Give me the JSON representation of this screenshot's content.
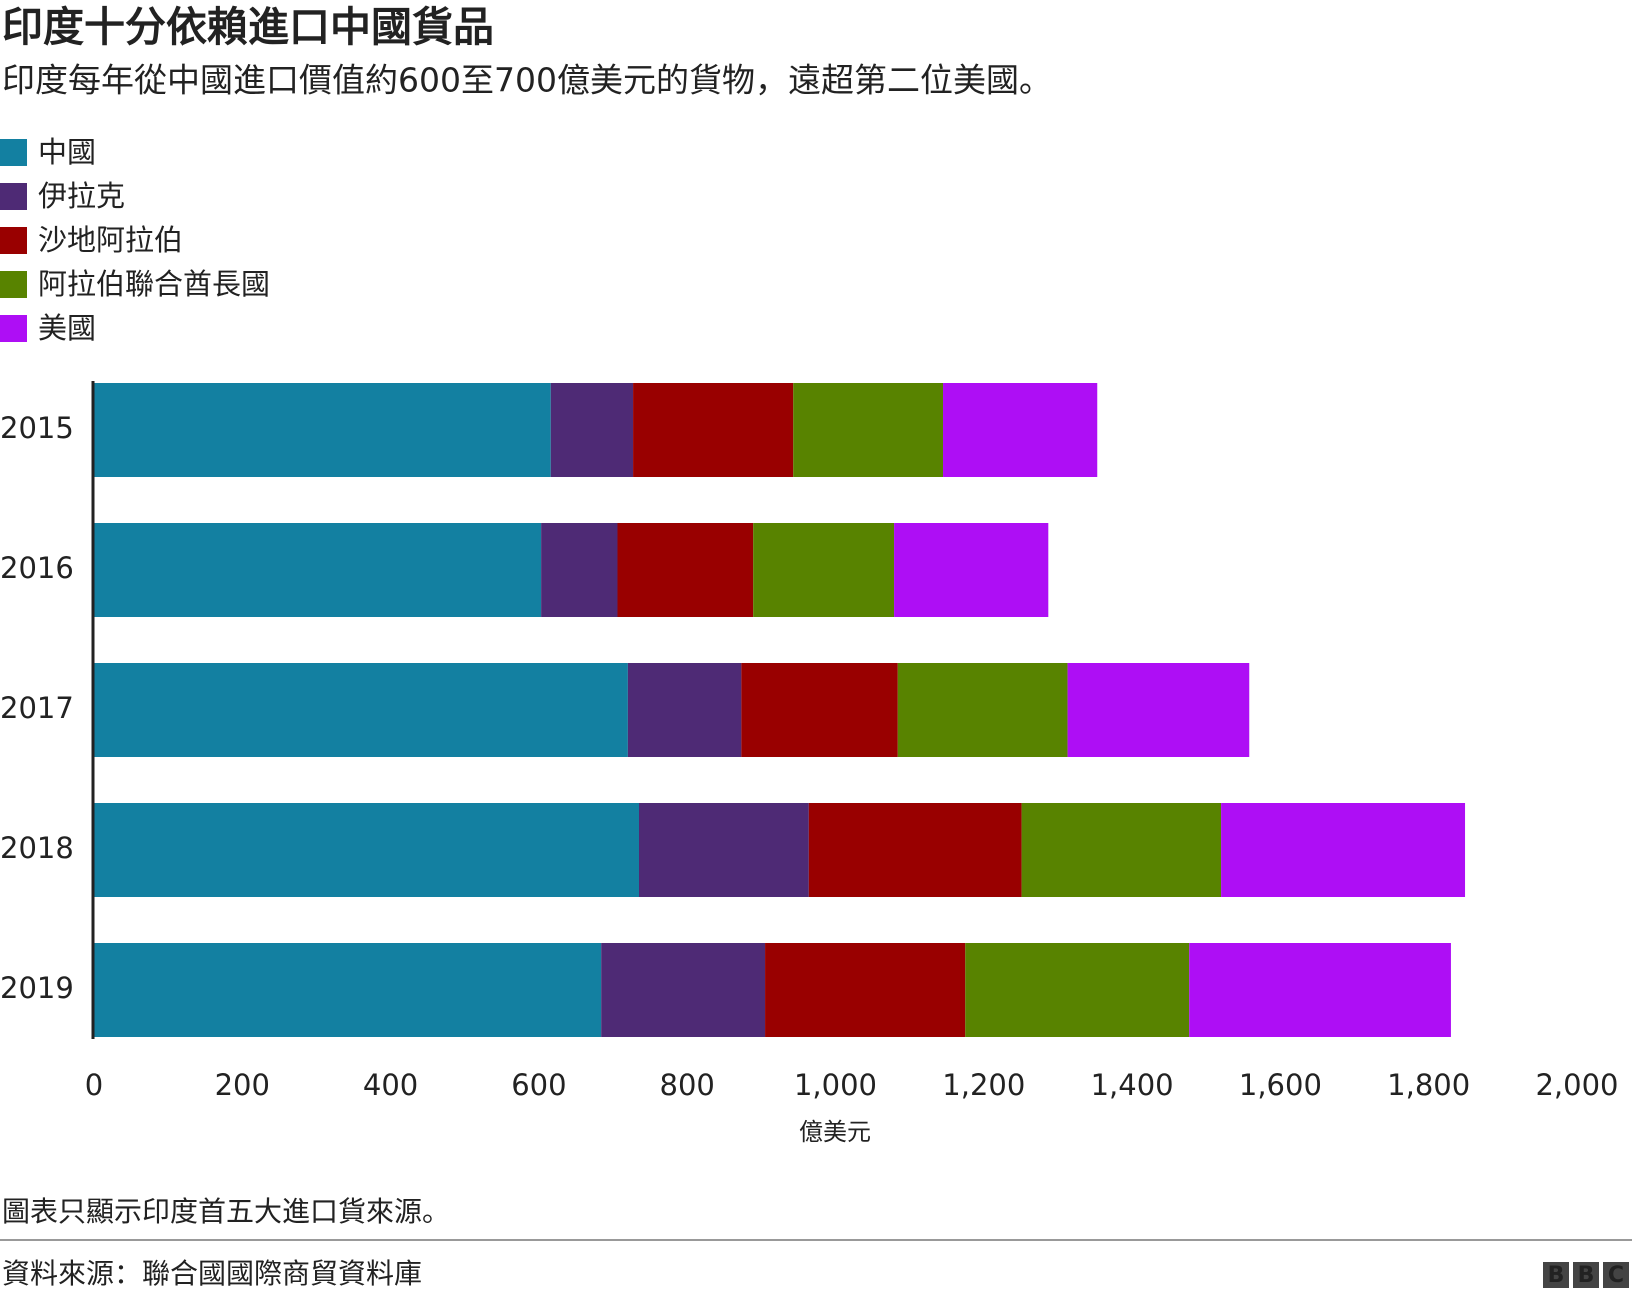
{
  "chart_data": {
    "type": "stacked-barh",
    "title": "印度十分依賴進口中國貨品",
    "subtitle": "印度每年從中國進口價值約600至700億美元的貨物，遠超第二位美國。",
    "categories": [
      "2015",
      "2016",
      "2017",
      "2018",
      "2019"
    ],
    "series": [
      {
        "name": "中國",
        "color": "#1380A1",
        "values": [
          616,
          603,
          720,
          735,
          684
        ]
      },
      {
        "name": "伊拉克",
        "color": "#4E2A75",
        "values": [
          111,
          103,
          153,
          229,
          221
        ]
      },
      {
        "name": "沙地阿拉伯",
        "color": "#990000",
        "values": [
          216,
          183,
          211,
          287,
          270
        ]
      },
      {
        "name": "阿拉伯聯合酋長國",
        "color": "#588300",
        "values": [
          202,
          190,
          229,
          269,
          302
        ]
      },
      {
        "name": "美國",
        "color": "#AE0EF5",
        "values": [
          208,
          208,
          245,
          329,
          353
        ]
      }
    ],
    "xlim": [
      0,
      2000
    ],
    "xticks": [
      0,
      200,
      400,
      600,
      800,
      {
        "value": 1000,
        "label": "1,000"
      },
      {
        "value": 1200,
        "label": "1,200"
      },
      {
        "value": 1400,
        "label": "1,400"
      },
      {
        "value": 1600,
        "label": "1,600"
      },
      {
        "value": 1800,
        "label": "1,800"
      },
      {
        "value": 2000,
        "label": "2,000"
      }
    ],
    "xlabel": "億美元",
    "note": "圖表只顯示印度首五大進口貨來源。",
    "source": "資料來源：聯合國國際商貿資料庫",
    "logo": "BBC"
  }
}
